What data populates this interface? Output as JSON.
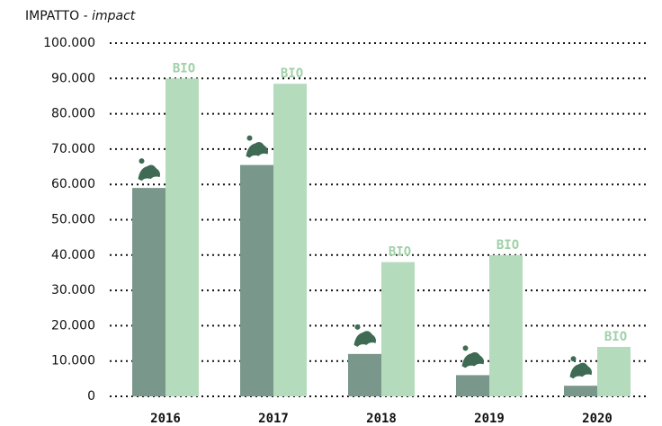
{
  "chart_data": {
    "type": "bar",
    "title": {
      "main": "IMPATTO -",
      "italic": "impact"
    },
    "categories": [
      "2016",
      "2017",
      "2018",
      "2019",
      "2020"
    ],
    "series": [
      {
        "color": "#7a978b",
        "values": [
          59000,
          65500,
          12000,
          6000,
          3000
        ]
      },
      {
        "name": "BIO",
        "color": "#b5dbbd",
        "label_color": "#9fd0a8",
        "values": [
          90000,
          88500,
          38000,
          40000,
          14000
        ]
      }
    ],
    "ylim": [
      0,
      100000
    ],
    "yticks": [
      0,
      {
        "value": 10000,
        "label": "10.000"
      },
      {
        "value": 20000,
        "label": "20.000"
      },
      {
        "value": 30000,
        "label": "30.000"
      },
      {
        "value": 40000,
        "label": "40.000"
      },
      {
        "value": 50000,
        "label": "50.000"
      },
      {
        "value": 60000,
        "label": "60.000"
      },
      {
        "value": 70000,
        "label": "70.000"
      },
      {
        "value": 80000,
        "label": "80.000"
      },
      {
        "value": 90000,
        "label": "90.000"
      },
      {
        "value": 100000,
        "label": "100.000"
      }
    ],
    "grid": true
  }
}
